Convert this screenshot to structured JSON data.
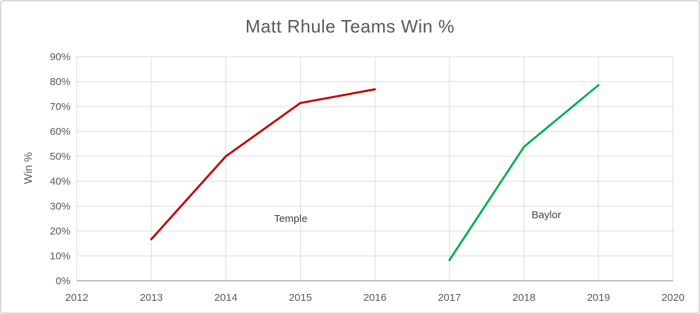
{
  "window": {
    "background_color": "#FFFFFF",
    "border_color": "#D8D8D8"
  },
  "chart_data": {
    "type": "line",
    "title": "Matt Rhule Teams Win %",
    "xlabel": "",
    "ylabel": "Win %",
    "xlim": [
      2012,
      2020
    ],
    "ylim": [
      0,
      90
    ],
    "grid": true,
    "legend": "none",
    "x_ticks": [
      {
        "v": 2012,
        "label": "2012"
      },
      {
        "v": 2013,
        "label": "2013"
      },
      {
        "v": 2014,
        "label": "2014"
      },
      {
        "v": 2015,
        "label": "2015"
      },
      {
        "v": 2016,
        "label": "2016"
      },
      {
        "v": 2017,
        "label": "2017"
      },
      {
        "v": 2018,
        "label": "2018"
      },
      {
        "v": 2019,
        "label": "2019"
      },
      {
        "v": 2020,
        "label": "2020"
      }
    ],
    "y_ticks": [
      {
        "v": 0,
        "label": "0%"
      },
      {
        "v": 10,
        "label": "10%"
      },
      {
        "v": 20,
        "label": "20%"
      },
      {
        "v": 30,
        "label": "30%"
      },
      {
        "v": 40,
        "label": "40%"
      },
      {
        "v": 50,
        "label": "50%"
      },
      {
        "v": 60,
        "label": "60%"
      },
      {
        "v": 70,
        "label": "70%"
      },
      {
        "v": 80,
        "label": "80%"
      },
      {
        "v": 90,
        "label": "90%"
      }
    ],
    "series": [
      {
        "name": "Temple",
        "color": "#C00000",
        "points": [
          {
            "x": 2013,
            "y": 16.7
          },
          {
            "x": 2014,
            "y": 50.0
          },
          {
            "x": 2015,
            "y": 71.4
          },
          {
            "x": 2016,
            "y": 76.9
          }
        ],
        "label": {
          "text": "Temple",
          "x": 2014.87,
          "y": 25.0
        }
      },
      {
        "name": "Baylor",
        "color": "#00B050",
        "points": [
          {
            "x": 2017,
            "y": 8.3
          },
          {
            "x": 2018,
            "y": 53.8
          },
          {
            "x": 2019,
            "y": 78.6
          }
        ],
        "label": {
          "text": "Baylor",
          "x": 2018.3,
          "y": 26.5
        }
      }
    ],
    "styles": {
      "gridline_color": "#D9D9D9",
      "axis_line_color": "#BFBFBF",
      "tick_label_color": "#595959",
      "title_color": "#595959",
      "series_label_color": "#404040"
    }
  }
}
